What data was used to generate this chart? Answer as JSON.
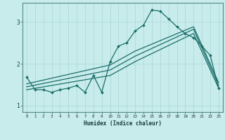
{
  "xlabel": "Humidex (Indice chaleur)",
  "bg_color": "#c8ecec",
  "line_color": "#1a6e6a",
  "grid_color": "#b0d8d8",
  "xlim": [
    -0.5,
    23.5
  ],
  "ylim": [
    0.85,
    3.45
  ],
  "xticks": [
    0,
    1,
    2,
    3,
    4,
    5,
    6,
    7,
    8,
    9,
    10,
    11,
    12,
    13,
    14,
    15,
    16,
    17,
    18,
    19,
    20,
    21,
    22,
    23
  ],
  "yticks": [
    1,
    2,
    3
  ],
  "line1_x": [
    0,
    1,
    2,
    3,
    4,
    5,
    6,
    7,
    8,
    9,
    10,
    11,
    12,
    13,
    14,
    15,
    16,
    17,
    18,
    19,
    20,
    21,
    22,
    23
  ],
  "line1_y": [
    1.68,
    1.38,
    1.38,
    1.32,
    1.38,
    1.42,
    1.48,
    1.32,
    1.72,
    1.32,
    2.05,
    2.42,
    2.5,
    2.78,
    2.92,
    3.28,
    3.25,
    3.07,
    2.88,
    2.72,
    2.62,
    2.42,
    2.2,
    1.42
  ],
  "line2_x": [
    0,
    10,
    13,
    20,
    23
  ],
  "line2_y": [
    1.38,
    1.72,
    2.05,
    2.72,
    1.42
  ],
  "line3_x": [
    0,
    10,
    13,
    20,
    23
  ],
  "line3_y": [
    1.45,
    1.85,
    2.18,
    2.82,
    1.48
  ],
  "line4_x": [
    0,
    10,
    13,
    20,
    23
  ],
  "line4_y": [
    1.52,
    1.97,
    2.3,
    2.88,
    1.55
  ]
}
